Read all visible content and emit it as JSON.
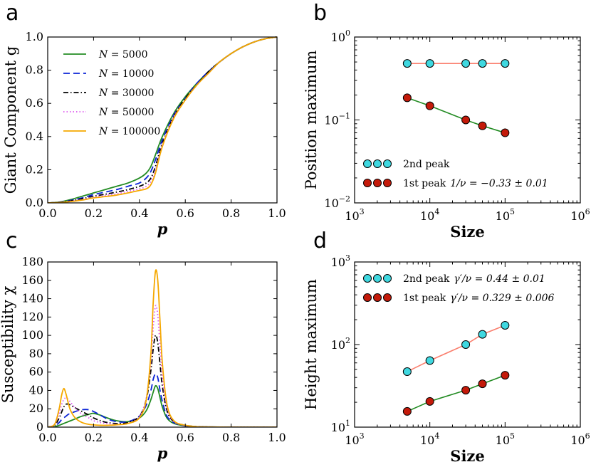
{
  "chart_data": [
    {
      "panel": "a",
      "type": "line",
      "xlabel": "p",
      "ylabel": "Giant Component g",
      "xlim": [
        0.0,
        1.0
      ],
      "ylim": [
        0.0,
        1.0
      ],
      "xticks": [
        "0.0",
        "0.2",
        "0.4",
        "0.6",
        "0.8",
        "1.0"
      ],
      "yticks": [
        "0.0",
        "0.2",
        "0.4",
        "0.6",
        "0.8",
        "1.0"
      ],
      "legend_position": "upper-left",
      "x": [
        0.0,
        0.05,
        0.1,
        0.15,
        0.2,
        0.25,
        0.3,
        0.35,
        0.4,
        0.43,
        0.45,
        0.47,
        0.5,
        0.55,
        0.6,
        0.65,
        0.7,
        0.75,
        0.8,
        0.85,
        0.9,
        0.95,
        1.0
      ],
      "series": [
        {
          "name": "N = 5000",
          "label": "N = 5000",
          "color": "#228b22",
          "dash": "solid",
          "values": [
            0,
            0.005,
            0.02,
            0.04,
            0.06,
            0.08,
            0.1,
            0.12,
            0.15,
            0.18,
            0.22,
            0.29,
            0.4,
            0.54,
            0.64,
            0.72,
            0.79,
            0.85,
            0.9,
            0.94,
            0.97,
            0.99,
            1.0
          ]
        },
        {
          "name": "N = 10000",
          "label": "N = 10000",
          "color": "#0a24d6",
          "dash": "dashed",
          "values": [
            0,
            0.004,
            0.015,
            0.03,
            0.05,
            0.065,
            0.08,
            0.1,
            0.12,
            0.15,
            0.19,
            0.26,
            0.38,
            0.53,
            0.63,
            0.72,
            0.79,
            0.85,
            0.9,
            0.94,
            0.97,
            0.99,
            1.0
          ]
        },
        {
          "name": "N = 30000",
          "label": "N = 30000",
          "color": "#000000",
          "dash": "dashdot",
          "values": [
            0,
            0.003,
            0.012,
            0.025,
            0.04,
            0.052,
            0.065,
            0.08,
            0.1,
            0.12,
            0.15,
            0.22,
            0.36,
            0.52,
            0.63,
            0.71,
            0.79,
            0.85,
            0.9,
            0.94,
            0.97,
            0.99,
            1.0
          ]
        },
        {
          "name": "N = 50000",
          "label": "N = 50000",
          "color": "#dd55ee",
          "dash": "dotted",
          "values": [
            0,
            0.002,
            0.01,
            0.02,
            0.035,
            0.045,
            0.055,
            0.07,
            0.085,
            0.1,
            0.13,
            0.2,
            0.35,
            0.52,
            0.62,
            0.71,
            0.78,
            0.85,
            0.9,
            0.94,
            0.97,
            0.99,
            1.0
          ]
        },
        {
          "name": "N = 100000",
          "label": "N = 100000",
          "color": "#f5a800",
          "dash": "solid",
          "values": [
            0,
            0.002,
            0.008,
            0.017,
            0.03,
            0.038,
            0.047,
            0.06,
            0.075,
            0.085,
            0.11,
            0.18,
            0.34,
            0.51,
            0.62,
            0.71,
            0.78,
            0.85,
            0.9,
            0.94,
            0.97,
            0.99,
            1.0
          ]
        }
      ]
    },
    {
      "panel": "b",
      "type": "scatter",
      "xscale": "log",
      "yscale": "log",
      "xlabel": "Size",
      "ylabel": "Position maximum",
      "xlim": [
        1000,
        1000000
      ],
      "ylim": [
        0.01,
        1
      ],
      "xticks": [
        {
          "base": "10",
          "exp": "3"
        },
        {
          "base": "10",
          "exp": "4"
        },
        {
          "base": "10",
          "exp": "5"
        },
        {
          "base": "10",
          "exp": "6"
        }
      ],
      "yticks": [
        {
          "base": "10",
          "exp": "0"
        },
        {
          "base": "10",
          "exp": "−1"
        },
        {
          "base": "10",
          "exp": "−2"
        }
      ],
      "legend_position": "lower-left",
      "x": [
        5000,
        10000,
        30000,
        50000,
        100000
      ],
      "series": [
        {
          "name": "2nd peak",
          "label": "2nd peak",
          "annotation": "",
          "marker_color": "#3fd8e0",
          "line_color": "#fa7f6e",
          "values": [
            0.48,
            0.48,
            0.48,
            0.48,
            0.48
          ]
        },
        {
          "name": "1st peak",
          "label": "1st peak",
          "annotation": "1/ν = −0.33 ± 0.01",
          "marker_color": "#c41a0a",
          "line_color": "#228b22",
          "values": [
            0.185,
            0.148,
            0.1,
            0.085,
            0.07
          ]
        }
      ]
    },
    {
      "panel": "c",
      "type": "line",
      "xlabel": "p",
      "ylabel": "Susceptibility χ",
      "xlim": [
        0.0,
        1.0
      ],
      "ylim": [
        0,
        180
      ],
      "xticks": [
        "0.0",
        "0.2",
        "0.4",
        "0.6",
        "0.8",
        "1.0"
      ],
      "yticks": [
        "0",
        "20",
        "40",
        "60",
        "80",
        "100",
        "120",
        "140",
        "160",
        "180"
      ],
      "x": [
        0.0,
        0.03,
        0.05,
        0.06,
        0.07,
        0.08,
        0.09,
        0.1,
        0.12,
        0.15,
        0.18,
        0.2,
        0.23,
        0.26,
        0.3,
        0.35,
        0.4,
        0.43,
        0.45,
        0.46,
        0.47,
        0.48,
        0.49,
        0.5,
        0.52,
        0.55,
        0.6,
        0.65,
        0.7,
        0.8,
        1.0
      ],
      "series": [
        {
          "name": "N = 5000",
          "color": "#228b22",
          "dash": "solid",
          "values": [
            0,
            0.5,
            2,
            3,
            4,
            5,
            6,
            7,
            9,
            12,
            14,
            15,
            13,
            10,
            7,
            6,
            10,
            18,
            30,
            38,
            45,
            42,
            32,
            22,
            10,
            4,
            1.5,
            0.5,
            0.2,
            0,
            0
          ]
        },
        {
          "name": "N = 10000",
          "color": "#0a24d6",
          "dash": "dashed",
          "values": [
            0,
            1,
            5,
            8,
            10,
            12,
            14,
            15,
            17,
            19,
            19,
            17,
            13,
            9,
            6,
            6,
            12,
            24,
            40,
            52,
            58,
            54,
            40,
            28,
            12,
            5,
            1.5,
            0.5,
            0.2,
            0,
            0
          ]
        },
        {
          "name": "N = 30000",
          "color": "#000000",
          "dash": "dashdot",
          "values": [
            0,
            2,
            10,
            16,
            22,
            25,
            25,
            24,
            21,
            17,
            13,
            10,
            7,
            5,
            4,
            5,
            12,
            30,
            62,
            85,
            100,
            92,
            68,
            45,
            18,
            6,
            2,
            0.5,
            0.2,
            0,
            0
          ]
        },
        {
          "name": "N = 50000",
          "color": "#dd55ee",
          "dash": "dotted",
          "values": [
            0,
            3,
            15,
            24,
            30,
            32,
            30,
            27,
            21,
            14,
            10,
            7,
            5,
            4,
            3,
            4,
            12,
            32,
            72,
            108,
            132,
            122,
            88,
            55,
            20,
            6,
            2,
            0.5,
            0.2,
            0,
            0
          ]
        },
        {
          "name": "N = 100000",
          "color": "#f5a800",
          "dash": "solid",
          "values": [
            0,
            3,
            20,
            34,
            42,
            36,
            26,
            18,
            10,
            5,
            3,
            2.5,
            2,
            2,
            2.5,
            4,
            10,
            30,
            80,
            135,
            170,
            160,
            115,
            70,
            25,
            7,
            2,
            0.5,
            0.2,
            0,
            0
          ]
        }
      ]
    },
    {
      "panel": "d",
      "type": "scatter",
      "xscale": "log",
      "yscale": "log",
      "xlabel": "Size",
      "ylabel": "Height maximum",
      "xlim": [
        1000,
        1000000
      ],
      "ylim": [
        10,
        1000
      ],
      "xticks": [
        {
          "base": "10",
          "exp": "3"
        },
        {
          "base": "10",
          "exp": "4"
        },
        {
          "base": "10",
          "exp": "5"
        },
        {
          "base": "10",
          "exp": "6"
        }
      ],
      "yticks": [
        {
          "base": "10",
          "exp": "3"
        },
        {
          "base": "10",
          "exp": "2"
        },
        {
          "base": "10",
          "exp": "1"
        }
      ],
      "legend_position": "upper-left",
      "x": [
        5000,
        10000,
        30000,
        50000,
        100000
      ],
      "series": [
        {
          "name": "2nd peak",
          "label": "2nd peak",
          "annotation": "γ′/ν = 0.44 ± 0.01",
          "marker_color": "#3fd8e0",
          "line_color": "#fa7f6e",
          "values": [
            47,
            64,
            100,
            133,
            171
          ]
        },
        {
          "name": "1st peak",
          "label": "1st peak",
          "annotation": "γ′/ν = 0.329 ± 0.006",
          "marker_color": "#c41a0a",
          "line_color": "#228b22",
          "values": [
            15.5,
            20.5,
            28,
            33.5,
            42.5
          ]
        }
      ]
    }
  ],
  "panels": {
    "a": {
      "letter": "a"
    },
    "b": {
      "letter": "b"
    },
    "c": {
      "letter": "c"
    },
    "d": {
      "letter": "d"
    }
  }
}
